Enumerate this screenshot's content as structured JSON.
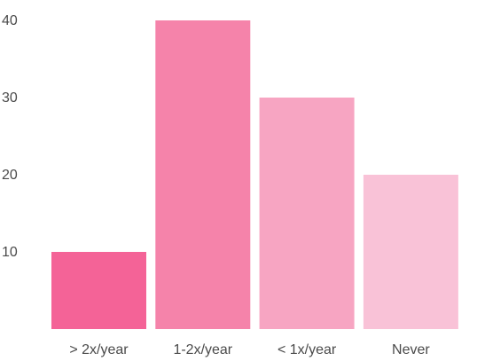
{
  "chart_data": {
    "type": "bar",
    "title": "",
    "xlabel": "",
    "ylabel": "",
    "categories": [
      "> 2x/year",
      "1-2x/year",
      "< 1x/year",
      "Never"
    ],
    "values": [
      10,
      40,
      30,
      20
    ],
    "colors": [
      "#f46397",
      "#f583aa",
      "#f7a5c2",
      "#f9c2d7"
    ],
    "ylim": [
      0,
      40
    ],
    "yticks": [
      10,
      20,
      30,
      40
    ],
    "grid": false,
    "legend": "none"
  }
}
